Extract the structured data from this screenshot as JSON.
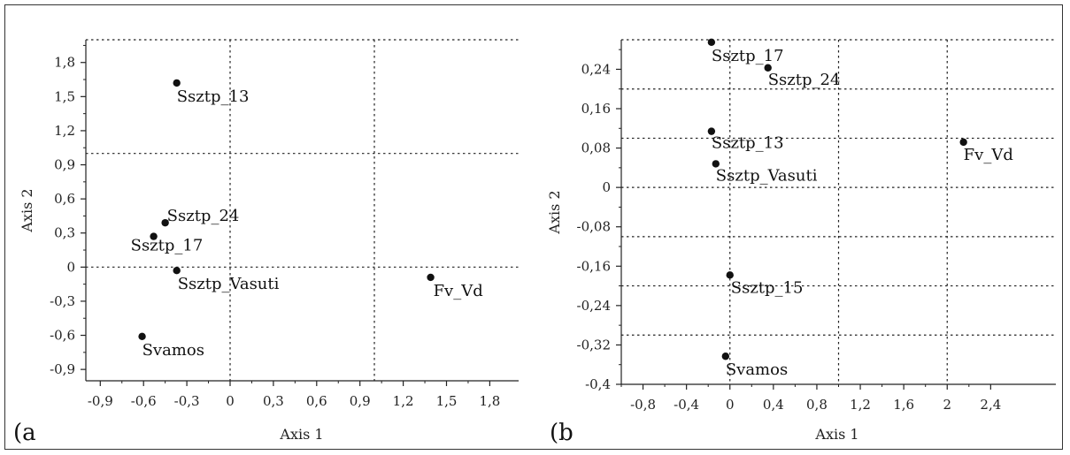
{
  "chart_data": [
    {
      "type": "scatter",
      "panel_label": "(a",
      "xlabel": "Axis 1",
      "ylabel": "Axis 2",
      "xlim": [
        -1.0,
        2.0
      ],
      "ylim": [
        -1.0,
        2.0
      ],
      "xticks": [
        -0.9,
        -0.6,
        -0.3,
        0,
        0.3,
        0.6,
        0.9,
        1.2,
        1.5,
        1.8
      ],
      "xtick_labels": [
        "-0,9",
        "-0,6",
        "-0,3",
        "0",
        "0,3",
        "0,6",
        "0,9",
        "1,2",
        "1,5",
        "1,8"
      ],
      "yticks": [
        -0.9,
        -0.6,
        -0.3,
        0,
        0.3,
        0.6,
        0.9,
        1.2,
        1.5,
        1.8
      ],
      "ytick_labels": [
        "-0,9",
        "-0,6",
        "-0,3",
        "0",
        "0,3",
        "0,6",
        "0,9",
        "1,2",
        "1,5",
        "1,8"
      ],
      "grid_v": [
        0,
        1.0
      ],
      "grid_h": [
        0,
        1.0,
        2.0
      ],
      "points": [
        {
          "label": "Ssztp_13",
          "x": -0.37,
          "y": 1.62
        },
        {
          "label": "Ssztp_24",
          "x": -0.45,
          "y": 0.39
        },
        {
          "label": "Ssztp_17",
          "x": -0.53,
          "y": 0.27
        },
        {
          "label": "Ssztp_Vasuti",
          "x": -0.37,
          "y": -0.03
        },
        {
          "label": "Fv_Vd",
          "x": 1.39,
          "y": -0.09
        },
        {
          "label": "Svamos",
          "x": -0.61,
          "y": -0.61
        }
      ]
    },
    {
      "type": "scatter",
      "panel_label": "(b",
      "xlabel": "Axis 1",
      "ylabel": "Axis 2",
      "xlim": [
        -1.0,
        3.0
      ],
      "ylim": [
        -0.4,
        0.3
      ],
      "xticks": [
        -0.8,
        -0.4,
        0,
        0.4,
        0.8,
        1.2,
        1.6,
        2,
        2.4
      ],
      "xtick_labels": [
        "-0,8",
        "-0,4",
        "0",
        "0,4",
        "0,8",
        "1,2",
        "1,6",
        "2",
        "2,4"
      ],
      "yticks": [
        -0.4,
        -0.32,
        -0.24,
        -0.16,
        -0.08,
        0,
        0.08,
        0.16,
        0.24
      ],
      "ytick_labels": [
        "-0,4",
        "-0,32",
        "-0,24",
        "-0,16",
        "-0,08",
        "0",
        "0,08",
        "0,16",
        "0,24"
      ],
      "grid_v": [
        0,
        1.0,
        2.0
      ],
      "grid_h": [
        -0.3,
        -0.2,
        -0.1,
        0,
        0.1,
        0.2,
        0.3
      ],
      "points": [
        {
          "label": "Ssztp_17",
          "x": -0.17,
          "y": 0.295
        },
        {
          "label": "Ssztp_24",
          "x": 0.35,
          "y": 0.243
        },
        {
          "label": "Ssztp_13",
          "x": -0.17,
          "y": 0.114
        },
        {
          "label": "Ssztp_Vasuti",
          "x": -0.13,
          "y": 0.048
        },
        {
          "label": "Fv_Vd",
          "x": 2.15,
          "y": 0.092
        },
        {
          "label": "Ssztp_15",
          "x": 0.0,
          "y": -0.178
        },
        {
          "label": "Svamos",
          "x": -0.04,
          "y": -0.343
        }
      ]
    }
  ]
}
